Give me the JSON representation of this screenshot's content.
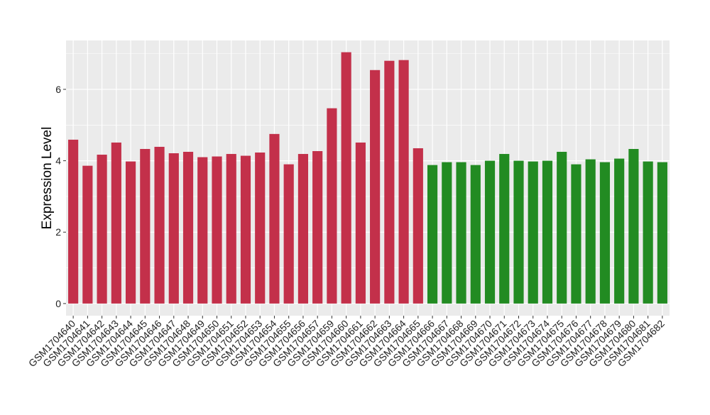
{
  "chart_data": {
    "type": "bar",
    "title": "",
    "xlabel": "",
    "ylabel": "Expression Level",
    "ylim": [
      -0.34,
      7.37
    ],
    "yticks": [
      0,
      2,
      4,
      6
    ],
    "grid": true,
    "colors": {
      "group1": "#C3304A",
      "group2": "#228B22",
      "panel": "#EBEBEB",
      "grid": "#FFFFFF"
    },
    "categories": [
      "GSM1704640",
      "GSM1704641",
      "GSM1704642",
      "GSM1704643",
      "GSM1704644",
      "GSM1704645",
      "GSM1704646",
      "GSM1704647",
      "GSM1704648",
      "GSM1704649",
      "GSM1704650",
      "GSM1704651",
      "GSM1704652",
      "GSM1704653",
      "GSM1704654",
      "GSM1704655",
      "GSM1704656",
      "GSM1704657",
      "GSM1704659",
      "GSM1704660",
      "GSM1704661",
      "GSM1704662",
      "GSM1704663",
      "GSM1704664",
      "GSM1704665",
      "GSM1704666",
      "GSM1704667",
      "GSM1704668",
      "GSM1704669",
      "GSM1704670",
      "GSM1704671",
      "GSM1704672",
      "GSM1704673",
      "GSM1704674",
      "GSM1704675",
      "GSM1704676",
      "GSM1704677",
      "GSM1704678",
      "GSM1704679",
      "GSM1704680",
      "GSM1704681",
      "GSM1704682"
    ],
    "values": [
      4.59,
      3.86,
      4.17,
      4.51,
      3.98,
      4.33,
      4.39,
      4.21,
      4.25,
      4.1,
      4.12,
      4.19,
      4.14,
      4.23,
      4.75,
      3.9,
      4.19,
      4.27,
      5.47,
      7.04,
      4.51,
      6.54,
      6.8,
      6.82,
      4.35,
      3.88,
      3.96,
      3.96,
      3.88,
      4.0,
      4.19,
      4.0,
      3.98,
      4.0,
      4.25,
      3.9,
      4.04,
      3.96,
      4.06,
      4.33,
      3.98,
      3.96
    ],
    "groups": [
      "group1",
      "group1",
      "group1",
      "group1",
      "group1",
      "group1",
      "group1",
      "group1",
      "group1",
      "group1",
      "group1",
      "group1",
      "group1",
      "group1",
      "group1",
      "group1",
      "group1",
      "group1",
      "group1",
      "group1",
      "group1",
      "group1",
      "group1",
      "group1",
      "group1",
      "group2",
      "group2",
      "group2",
      "group2",
      "group2",
      "group2",
      "group2",
      "group2",
      "group2",
      "group2",
      "group2",
      "group2",
      "group2",
      "group2",
      "group2",
      "group2",
      "group2"
    ]
  }
}
